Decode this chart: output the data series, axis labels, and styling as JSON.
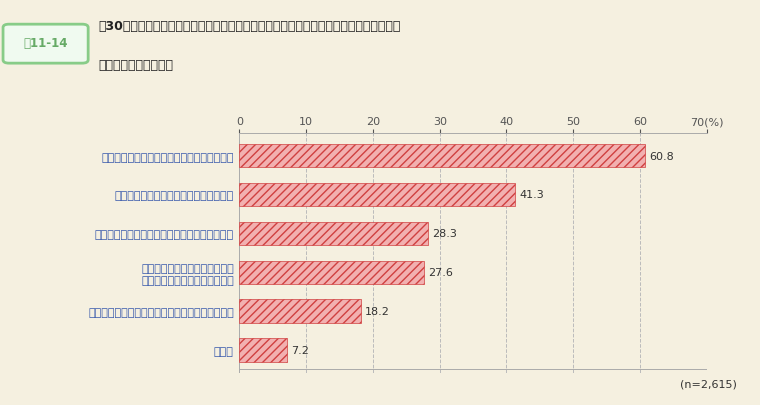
{
  "title_box_label": "図11-14",
  "title_main": "【30代職員調査】（図１１－１３で「ある」と回答した者に対し）指導を躊躇した理由",
  "title_sub": "（いくつでも回答可）",
  "categories": [
    "部下がかえってやる気をなくす不安があった",
    "人間関係に悪影響を及ぼす不安があった",
    "部下を指導する精神的・時間的余裕がなかった",
    "自分が指導しようとする内容が\n正しいのか確信を持てなかった",
    "ハラスメントと受け止められないか不安があった",
    "その他"
  ],
  "values": [
    60.8,
    41.3,
    28.3,
    27.6,
    18.2,
    7.2
  ],
  "bar_facecolor": "#f2b0b0",
  "hatch_color": "#d04040",
  "background_color": "#f5f0e0",
  "xlabel_pct": "70(%)",
  "xlim": [
    0,
    70
  ],
  "xticks": [
    0,
    10,
    20,
    30,
    40,
    50,
    60,
    70
  ],
  "grid_color": "#bbbbbb",
  "note": "(n=2,615)",
  "title_box_border": "#88cc88",
  "title_box_bg": "#f0faf0",
  "title_box_text_color": "#66aa66",
  "title_text_color": "#222222",
  "value_label_color": "#333333",
  "axis_label_color": "#3355aa",
  "tick_label_color": "#3355aa"
}
